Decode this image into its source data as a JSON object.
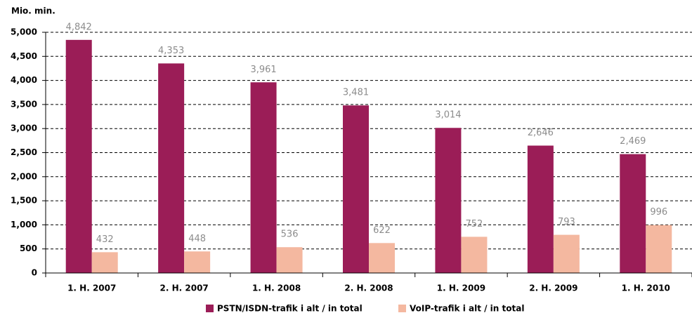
{
  "chart_data": {
    "type": "bar",
    "y_label": "Mio. min.",
    "categories": [
      "1. H. 2007",
      "2. H. 2007",
      "1. H. 2008",
      "2. H. 2008",
      "1. H. 2009",
      "2. H. 2009",
      "1. H. 2010"
    ],
    "series": [
      {
        "name": "PSTN/ISDN-trafik i alt / in total",
        "color": "#9b1d57",
        "values": [
          4842,
          4353,
          3961,
          3481,
          3014,
          2646,
          2469
        ],
        "value_labels": [
          "4,842",
          "4,353",
          "3,961",
          "3,481",
          "3,014",
          "2,646",
          "2,469"
        ]
      },
      {
        "name": "VoIP-trafik i alt / in total",
        "color": "#f4b8a0",
        "values": [
          432,
          448,
          536,
          622,
          752,
          793,
          996
        ],
        "value_labels": [
          "432",
          "448",
          "536",
          "622",
          "752",
          "793",
          "996"
        ]
      }
    ],
    "ylim": [
      0,
      5000
    ],
    "yticks": [
      0,
      {
        "value": 500,
        "label": "500"
      },
      {
        "value": 1000,
        "label": "1,000"
      },
      {
        "value": 1500,
        "label": "1,500"
      },
      {
        "value": 2000,
        "label": "2,000"
      },
      {
        "value": 2500,
        "label": "2,500"
      },
      {
        "value": 3000,
        "label": "3,000"
      },
      {
        "value": 3500,
        "label": "3,500"
      },
      {
        "value": 4000,
        "label": "4,000"
      },
      {
        "value": 4500,
        "label": "4,500"
      },
      {
        "value": 5000,
        "label": "5,000"
      }
    ],
    "grid": true,
    "legend": "bottom"
  }
}
